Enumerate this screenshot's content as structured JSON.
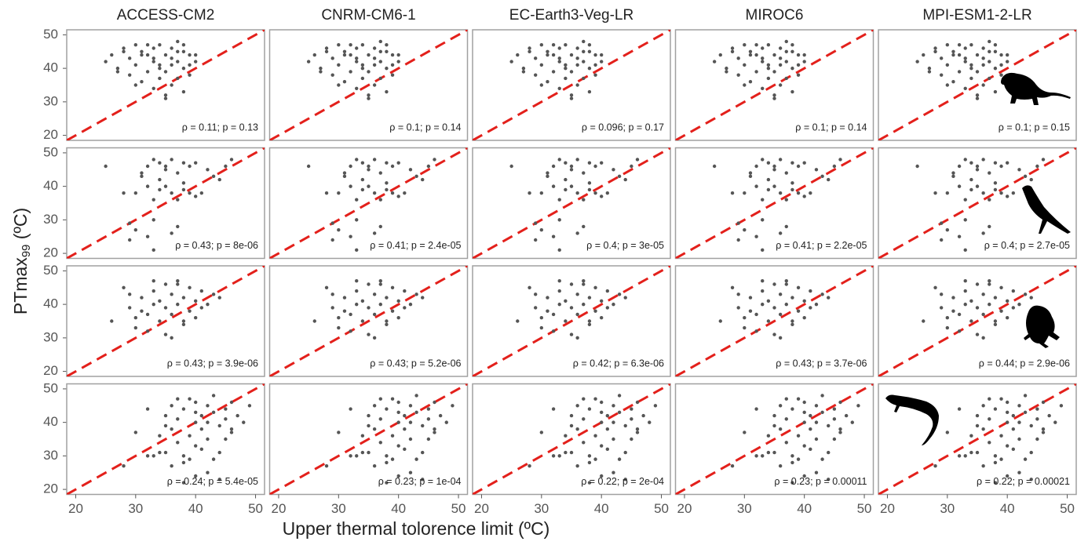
{
  "chart_data": {
    "type": "scatter",
    "columns": [
      "ACCESS-CM2",
      "CNRM-CM6-1",
      "EC-Earth3-Veg-LR",
      "MIROC6",
      "MPI-ESM1-2-LR"
    ],
    "xlabel": "Upper thermal tolorence limit (ºC)",
    "ylabel": "PTmax",
    "ylabel_sub": "99",
    "ylabel_unit": " (ºC)",
    "xlim": [
      18.5,
      51.5
    ],
    "ylim": [
      18.5,
      51.5
    ],
    "xticks": [
      20,
      30,
      40,
      50
    ],
    "yticks": [
      20,
      30,
      40,
      50
    ],
    "point_color": "#555555",
    "reference_line": {
      "color": "#e3201b",
      "dashed": true
    },
    "rows": [
      {
        "x": [
          25,
          26,
          27,
          28,
          29,
          29,
          30,
          30,
          31,
          31,
          32,
          32,
          33,
          33,
          33,
          34,
          34,
          34,
          35,
          35,
          35,
          36,
          36,
          36,
          37,
          37,
          37,
          38,
          38,
          38,
          39,
          39,
          40,
          27,
          28,
          31,
          34,
          36,
          33,
          35,
          30,
          32,
          37,
          38,
          40,
          39
        ],
        "y": [
          42,
          44,
          40,
          46,
          43,
          38,
          41,
          47,
          45,
          36,
          44,
          39,
          42,
          46,
          34,
          41,
          47,
          37,
          44,
          32,
          39,
          43,
          46,
          35,
          42,
          48,
          37,
          45,
          40,
          33,
          44,
          38,
          42,
          39,
          45,
          44,
          40,
          41,
          43,
          31,
          35,
          47,
          45,
          47,
          44,
          41
        ],
        "annotations": [
          "ρ = 0.11; p = 0.13",
          "ρ = 0.1; p = 0.14",
          "ρ = 0.096; p = 0.17",
          "ρ = 0.1; p = 0.14",
          "ρ = 0.1; p = 0.15"
        ]
      },
      {
        "x": [
          25,
          28,
          29,
          30,
          30,
          31,
          32,
          32,
          33,
          33,
          34,
          34,
          35,
          35,
          36,
          36,
          37,
          37,
          38,
          38,
          39,
          39,
          40,
          41,
          42,
          43,
          45,
          46,
          32,
          33,
          36,
          37,
          29,
          31,
          34,
          35,
          38,
          40,
          44,
          33
        ],
        "y": [
          46,
          38,
          29,
          38,
          27,
          44,
          46,
          40,
          48,
          36,
          42,
          47,
          40,
          45,
          48,
          38,
          44,
          36,
          47,
          41,
          46,
          38,
          47,
          38,
          45,
          43,
          46,
          48,
          25,
          21,
          26,
          28,
          24,
          43,
          39,
          46,
          39,
          37,
          42,
          30
        ],
        "annotations": [
          "ρ = 0.43; p = 8e-06",
          "ρ = 0.41; p = 2.4e-05",
          "ρ = 0.4; p = 3e-05",
          "ρ = 0.41; p = 2.2e-05",
          "ρ = 0.4; p = 2.7e-05"
        ]
      },
      {
        "x": [
          26,
          28,
          29,
          30,
          30,
          31,
          31,
          32,
          33,
          33,
          34,
          34,
          35,
          35,
          36,
          36,
          37,
          37,
          38,
          38,
          39,
          39,
          40,
          40,
          41,
          42,
          43,
          44,
          29,
          32,
          35,
          36,
          38,
          33,
          37,
          41
        ],
        "y": [
          35,
          45,
          39,
          36,
          33,
          38,
          42,
          37,
          40,
          44,
          35,
          41,
          39,
          46,
          37,
          43,
          40,
          46,
          34,
          42,
          38,
          45,
          41,
          36,
          44,
          40,
          43,
          42,
          43,
          32,
          31,
          30,
          35,
          47,
          47,
          39
        ],
        "annotations": [
          "ρ = 0.43; p = 3.9e-06",
          "ρ = 0.43; p = 5.2e-06",
          "ρ = 0.42; p = 6.3e-06",
          "ρ = 0.43; p = 3.7e-06",
          "ρ = 0.44; p = 2.9e-06"
        ]
      },
      {
        "x": [
          28,
          30,
          32,
          33,
          34,
          35,
          35,
          36,
          36,
          37,
          37,
          38,
          38,
          39,
          39,
          40,
          40,
          40,
          41,
          41,
          42,
          42,
          43,
          43,
          44,
          44,
          45,
          45,
          46,
          46,
          47,
          48,
          49,
          32,
          34,
          36,
          38,
          40,
          42,
          44,
          46,
          37,
          39,
          41,
          43,
          45,
          38,
          40,
          42,
          35
        ],
        "y": [
          27,
          37,
          44,
          30,
          36,
          42,
          31,
          38,
          45,
          34,
          41,
          30,
          44,
          36,
          47,
          40,
          33,
          46,
          42,
          38,
          45,
          35,
          43,
          48,
          39,
          31,
          44,
          41,
          37,
          46,
          42,
          40,
          45,
          30,
          31,
          27,
          28,
          24,
          25,
          23,
          38,
          47,
          29,
          32,
          29,
          35,
          22,
          43,
          40,
          39
        ],
        "annotations": [
          "ρ = 0.24; p = 5.4e-05",
          "ρ = 0.23; p = 1e-04",
          "ρ = 0.22; p = 2e-04",
          "ρ = 0.23; p = 0.00011",
          "ρ = 0.22; p = 0.00021"
        ]
      }
    ]
  }
}
